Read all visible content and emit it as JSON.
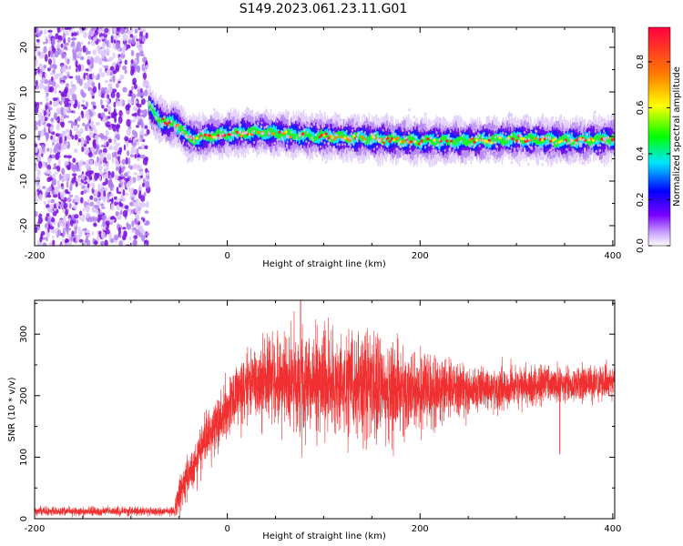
{
  "figure": {
    "title": "S149.2023.061.23.11.G01"
  },
  "chart_data": [
    {
      "type": "heatmap",
      "title": "S149.2023.061.23.11.G01",
      "xlabel": "Height of straight line (km)",
      "ylabel": "Frequency (Hz)",
      "xlim": [
        -200,
        402
      ],
      "ylim": [
        -24.5,
        24.5
      ],
      "xticks": [
        -200,
        0,
        200,
        400
      ],
      "yticks": [
        -20,
        -10,
        0,
        10,
        20
      ],
      "noise_region_x": [
        -200,
        -82
      ],
      "ridge": [
        {
          "x": -82,
          "y": 7
        },
        {
          "x": -76,
          "y": 5
        },
        {
          "x": -70,
          "y": 3.5
        },
        {
          "x": -62,
          "y": 3
        },
        {
          "x": -55,
          "y": 3
        },
        {
          "x": -48,
          "y": 1.5
        },
        {
          "x": -42,
          "y": 0
        },
        {
          "x": -35,
          "y": -0.5
        },
        {
          "x": -25,
          "y": 0
        },
        {
          "x": 0,
          "y": 0.5
        },
        {
          "x": 30,
          "y": 1
        },
        {
          "x": 60,
          "y": 0.5
        },
        {
          "x": 100,
          "y": 0
        },
        {
          "x": 150,
          "y": -0.5
        },
        {
          "x": 200,
          "y": -1
        },
        {
          "x": 250,
          "y": -1
        },
        {
          "x": 300,
          "y": -0.5
        },
        {
          "x": 350,
          "y": -1
        },
        {
          "x": 402,
          "y": -0.5
        }
      ],
      "colorbar": {
        "label": "Normalized spectral amplitude",
        "range": [
          0,
          0.95
        ],
        "ticks": [
          0.0,
          0.2,
          0.4,
          0.6,
          0.8
        ],
        "tick_labels": [
          "0.0",
          "0.2",
          "0.4",
          "0.6",
          "0.8"
        ],
        "colormap": [
          "#ffffff",
          "#c9a0ff",
          "#7a00ff",
          "#0000ff",
          "#00e5ff",
          "#00ff00",
          "#ffff00",
          "#ff7f00",
          "#ff0040"
        ]
      }
    },
    {
      "type": "line",
      "xlabel": "Height of straight line (km)",
      "ylabel": "SNR (10 * v/v)",
      "xlim": [
        -200,
        402
      ],
      "ylim": [
        0,
        355
      ],
      "xticks": [
        -200,
        0,
        200,
        400
      ],
      "yticks": [
        0,
        100,
        200,
        300
      ],
      "color": "#f03030",
      "envelope": [
        {
          "x": -200,
          "mean": 12,
          "amp": 6
        },
        {
          "x": -55,
          "mean": 12,
          "amp": 6
        },
        {
          "x": -50,
          "mean": 40,
          "amp": 25
        },
        {
          "x": -40,
          "mean": 70,
          "amp": 30
        },
        {
          "x": -20,
          "mean": 130,
          "amp": 35
        },
        {
          "x": 0,
          "mean": 180,
          "amp": 40
        },
        {
          "x": 20,
          "mean": 215,
          "amp": 45
        },
        {
          "x": 40,
          "mean": 225,
          "amp": 60
        },
        {
          "x": 80,
          "mean": 220,
          "amp": 75
        },
        {
          "x": 150,
          "mean": 210,
          "amp": 75
        },
        {
          "x": 210,
          "mean": 205,
          "amp": 50
        },
        {
          "x": 260,
          "mean": 210,
          "amp": 35
        },
        {
          "x": 320,
          "mean": 218,
          "amp": 25
        },
        {
          "x": 402,
          "mean": 222,
          "amp": 25
        }
      ],
      "annotations": [
        {
          "x": 76,
          "y": 355
        },
        {
          "x": 345,
          "y": 105
        }
      ]
    }
  ]
}
